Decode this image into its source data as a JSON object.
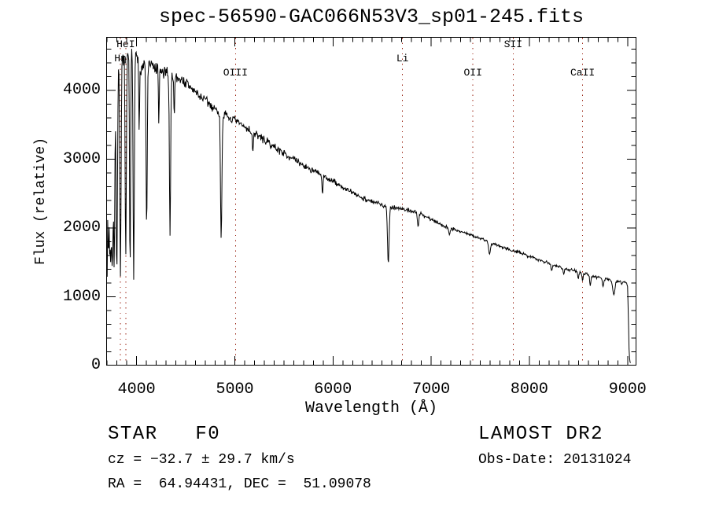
{
  "header": {
    "title": "spec-56590-GAC066N53V3_sp01-245.fits"
  },
  "chart_data": {
    "type": "line",
    "title": "spec-56590-GAC066N53V3_sp01-245.fits",
    "xlabel": "Wavelength (Å)",
    "ylabel": "Flux (relative)",
    "xlim": [
      3690,
      9090
    ],
    "ylim": [
      0,
      4780
    ],
    "x_ticks": [
      4000,
      5000,
      6000,
      7000,
      8000,
      9000
    ],
    "x_minor_step": 100,
    "y_ticks": [
      0,
      1000,
      2000,
      3000,
      4000
    ],
    "y_minor_step": 200,
    "grid": false,
    "legend": "none",
    "line_color": "#000000",
    "marker_color": "#992211",
    "line_markers": [
      {
        "label": "HeI",
        "wavelength": 3889,
        "row": 0
      },
      {
        "label": "Hη",
        "wavelength": 3835,
        "row": 1
      },
      {
        "label": "OIII",
        "wavelength": 5007,
        "row": 2
      },
      {
        "label": "Li",
        "wavelength": 6708,
        "row": 1
      },
      {
        "label": "OII",
        "wavelength": 7425,
        "row": 2
      },
      {
        "label": "SII",
        "wavelength": 7835,
        "row": 0
      },
      {
        "label": "CaII",
        "wavelength": 8542,
        "row": 2
      }
    ],
    "spectrum": {
      "seed": 7,
      "range": [
        3700,
        9030
      ],
      "sample_step": 5,
      "continuum": [
        [
          3700,
          1900
        ],
        [
          3755,
          2100
        ],
        [
          3770,
          2900
        ],
        [
          3790,
          3700
        ],
        [
          3815,
          4280
        ],
        [
          3860,
          4420
        ],
        [
          3920,
          4500
        ],
        [
          3955,
          4520
        ],
        [
          3995,
          4460
        ],
        [
          4045,
          4350
        ],
        [
          4120,
          4390
        ],
        [
          4200,
          4300
        ],
        [
          4280,
          4250
        ],
        [
          4360,
          4210
        ],
        [
          4440,
          4180
        ],
        [
          4520,
          4080
        ],
        [
          4620,
          3950
        ],
        [
          4720,
          3830
        ],
        [
          4800,
          3730
        ],
        [
          4900,
          3630
        ],
        [
          5000,
          3560
        ],
        [
          5100,
          3470
        ],
        [
          5200,
          3380
        ],
        [
          5300,
          3280
        ],
        [
          5400,
          3180
        ],
        [
          5500,
          3090
        ],
        [
          5600,
          3000
        ],
        [
          5700,
          2910
        ],
        [
          5800,
          2830
        ],
        [
          5900,
          2760
        ],
        [
          6000,
          2680
        ],
        [
          6100,
          2590
        ],
        [
          6200,
          2510
        ],
        [
          6300,
          2440
        ],
        [
          6400,
          2380
        ],
        [
          6500,
          2340
        ],
        [
          6600,
          2310
        ],
        [
          6700,
          2280
        ],
        [
          6800,
          2250
        ],
        [
          6900,
          2200
        ],
        [
          7000,
          2130
        ],
        [
          7100,
          2050
        ],
        [
          7200,
          2000
        ],
        [
          7300,
          1950
        ],
        [
          7400,
          1900
        ],
        [
          7500,
          1850
        ],
        [
          7600,
          1790
        ],
        [
          7700,
          1740
        ],
        [
          7800,
          1690
        ],
        [
          7900,
          1640
        ],
        [
          8000,
          1590
        ],
        [
          8100,
          1540
        ],
        [
          8200,
          1490
        ],
        [
          8300,
          1440
        ],
        [
          8400,
          1400
        ],
        [
          8500,
          1360
        ],
        [
          8600,
          1320
        ],
        [
          8700,
          1280
        ],
        [
          8800,
          1250
        ],
        [
          8900,
          1230
        ],
        [
          8990,
          1210
        ],
        [
          9000,
          1150
        ],
        [
          9008,
          700
        ],
        [
          9015,
          250
        ],
        [
          9022,
          60
        ],
        [
          9030,
          40
        ]
      ],
      "noise": [
        [
          3700,
          620
        ],
        [
          3760,
          420
        ],
        [
          3790,
          260
        ],
        [
          3830,
          170
        ],
        [
          3900,
          150
        ],
        [
          4000,
          140
        ],
        [
          4200,
          120
        ],
        [
          4500,
          100
        ],
        [
          4800,
          85
        ],
        [
          5000,
          75
        ],
        [
          5300,
          65
        ],
        [
          5600,
          55
        ],
        [
          6000,
          48
        ],
        [
          6400,
          42
        ],
        [
          6800,
          36
        ],
        [
          7200,
          30
        ],
        [
          7600,
          27
        ],
        [
          8000,
          26
        ],
        [
          8300,
          28
        ],
        [
          8600,
          30
        ],
        [
          8900,
          22
        ],
        [
          9030,
          15
        ]
      ],
      "absorption_lines": [
        {
          "center": 3712,
          "sigma": 5,
          "bottom": 1700
        },
        {
          "center": 3734,
          "sigma": 5,
          "bottom": 1500
        },
        {
          "center": 3750,
          "sigma": 5,
          "bottom": 1450
        },
        {
          "center": 3771,
          "sigma": 5,
          "bottom": 1400
        },
        {
          "center": 3798,
          "sigma": 6,
          "bottom": 1340
        },
        {
          "center": 3835,
          "sigma": 6,
          "bottom": 1300
        },
        {
          "center": 3889,
          "sigma": 6,
          "bottom": 1580
        },
        {
          "center": 3933,
          "sigma": 5,
          "bottom": 1320
        },
        {
          "center": 3970,
          "sigma": 6,
          "bottom": 1250
        },
        {
          "center": 4026,
          "sigma": 4,
          "bottom": 3400
        },
        {
          "center": 4102,
          "sigma": 6,
          "bottom": 2000
        },
        {
          "center": 4226,
          "sigma": 4,
          "bottom": 3500
        },
        {
          "center": 4340,
          "sigma": 6,
          "bottom": 1890
        },
        {
          "center": 4383,
          "sigma": 4,
          "bottom": 3600
        },
        {
          "center": 4861,
          "sigma": 7,
          "bottom": 1840
        },
        {
          "center": 5183,
          "sigma": 5,
          "bottom": 3100
        },
        {
          "center": 5893,
          "sigma": 5,
          "bottom": 2480
        },
        {
          "center": 6563,
          "sigma": 8,
          "bottom": 1480
        },
        {
          "center": 6867,
          "sigma": 7,
          "bottom": 2020
        },
        {
          "center": 7186,
          "sigma": 7,
          "bottom": 1900
        },
        {
          "center": 7594,
          "sigma": 9,
          "bottom": 1620
        },
        {
          "center": 8227,
          "sigma": 7,
          "bottom": 1380
        },
        {
          "center": 8350,
          "sigma": 6,
          "bottom": 1330
        },
        {
          "center": 8498,
          "sigma": 5,
          "bottom": 1260
        },
        {
          "center": 8542,
          "sigma": 5,
          "bottom": 1230
        },
        {
          "center": 8620,
          "sigma": 6,
          "bottom": 1160
        },
        {
          "center": 8750,
          "sigma": 7,
          "bottom": 1150
        },
        {
          "center": 8860,
          "sigma": 11,
          "bottom": 1030
        },
        {
          "center": 8940,
          "sigma": 6,
          "bottom": 1180
        }
      ]
    }
  },
  "annotations": {
    "class_line": "STAR   F0",
    "survey": "LAMOST DR2",
    "cz_line": "cz = −32.7 ± 29.7 km/s",
    "obs_date": "Obs-Date: 20131024",
    "radec": "RA =  64.94431, DEC =  51.09078"
  }
}
